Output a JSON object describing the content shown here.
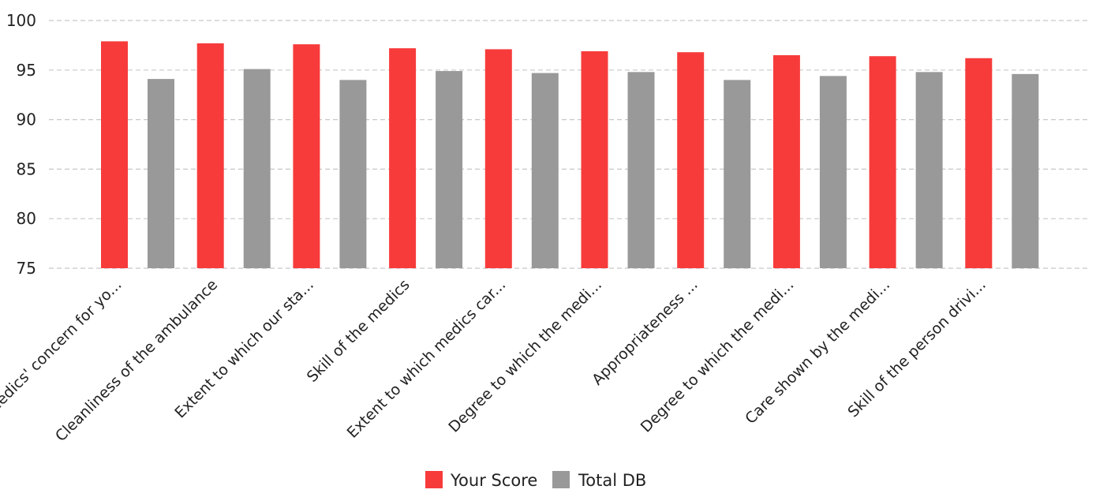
{
  "chart_data": {
    "type": "bar",
    "title": "",
    "xlabel": "",
    "ylabel": "",
    "ylim": [
      75,
      100
    ],
    "yticks": [
      75,
      80,
      85,
      90,
      95,
      100
    ],
    "grid": true,
    "legend_position": "bottom-center",
    "categories": [
      "Medics' concern for yo...",
      "Cleanliness of the ambulance",
      "Extent to which our sta...",
      "Skill of the medics",
      "Extent to which medics car...",
      "Degree to which the medi...",
      "Appropriateness ...",
      "Degree to which the medi...",
      "Care shown by the medi...",
      "Skill of the person drivi..."
    ],
    "series": [
      {
        "name": "Your Score",
        "color": "#f73b3b",
        "values": [
          97.9,
          97.7,
          97.6,
          97.2,
          97.1,
          96.9,
          96.8,
          96.5,
          96.4,
          96.2
        ]
      },
      {
        "name": "Total DB",
        "color": "#999999",
        "values": [
          94.1,
          95.1,
          94.0,
          94.9,
          94.7,
          94.8,
          94.0,
          94.4,
          94.8,
          94.6
        ]
      }
    ]
  }
}
